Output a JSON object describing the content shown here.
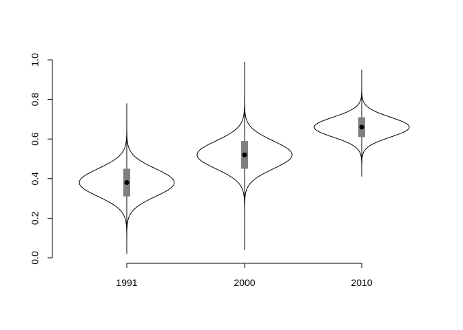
{
  "chart_data": {
    "type": "violin",
    "title": "",
    "xlabel": "",
    "ylabel": "",
    "ylim": [
      0,
      1
    ],
    "y_ticks": [
      "0.0",
      "0.2",
      "0.4",
      "0.6",
      "0.8",
      "1.0"
    ],
    "grid": false,
    "categories": [
      "1991",
      "2000",
      "2010"
    ],
    "series": [
      {
        "category": "1991",
        "min": 0.02,
        "whisker_low": 0.1,
        "q1": 0.31,
        "median": 0.38,
        "q3": 0.45,
        "whisker_high": 0.66,
        "max": 0.78
      },
      {
        "category": "2000",
        "min": 0.04,
        "whisker_low": 0.25,
        "q1": 0.45,
        "median": 0.52,
        "q3": 0.59,
        "whisker_high": 0.8,
        "max": 0.99
      },
      {
        "category": "2010",
        "min": 0.41,
        "whisker_low": 0.46,
        "q1": 0.61,
        "median": 0.66,
        "q3": 0.71,
        "whisker_high": 0.86,
        "max": 0.95
      }
    ]
  }
}
